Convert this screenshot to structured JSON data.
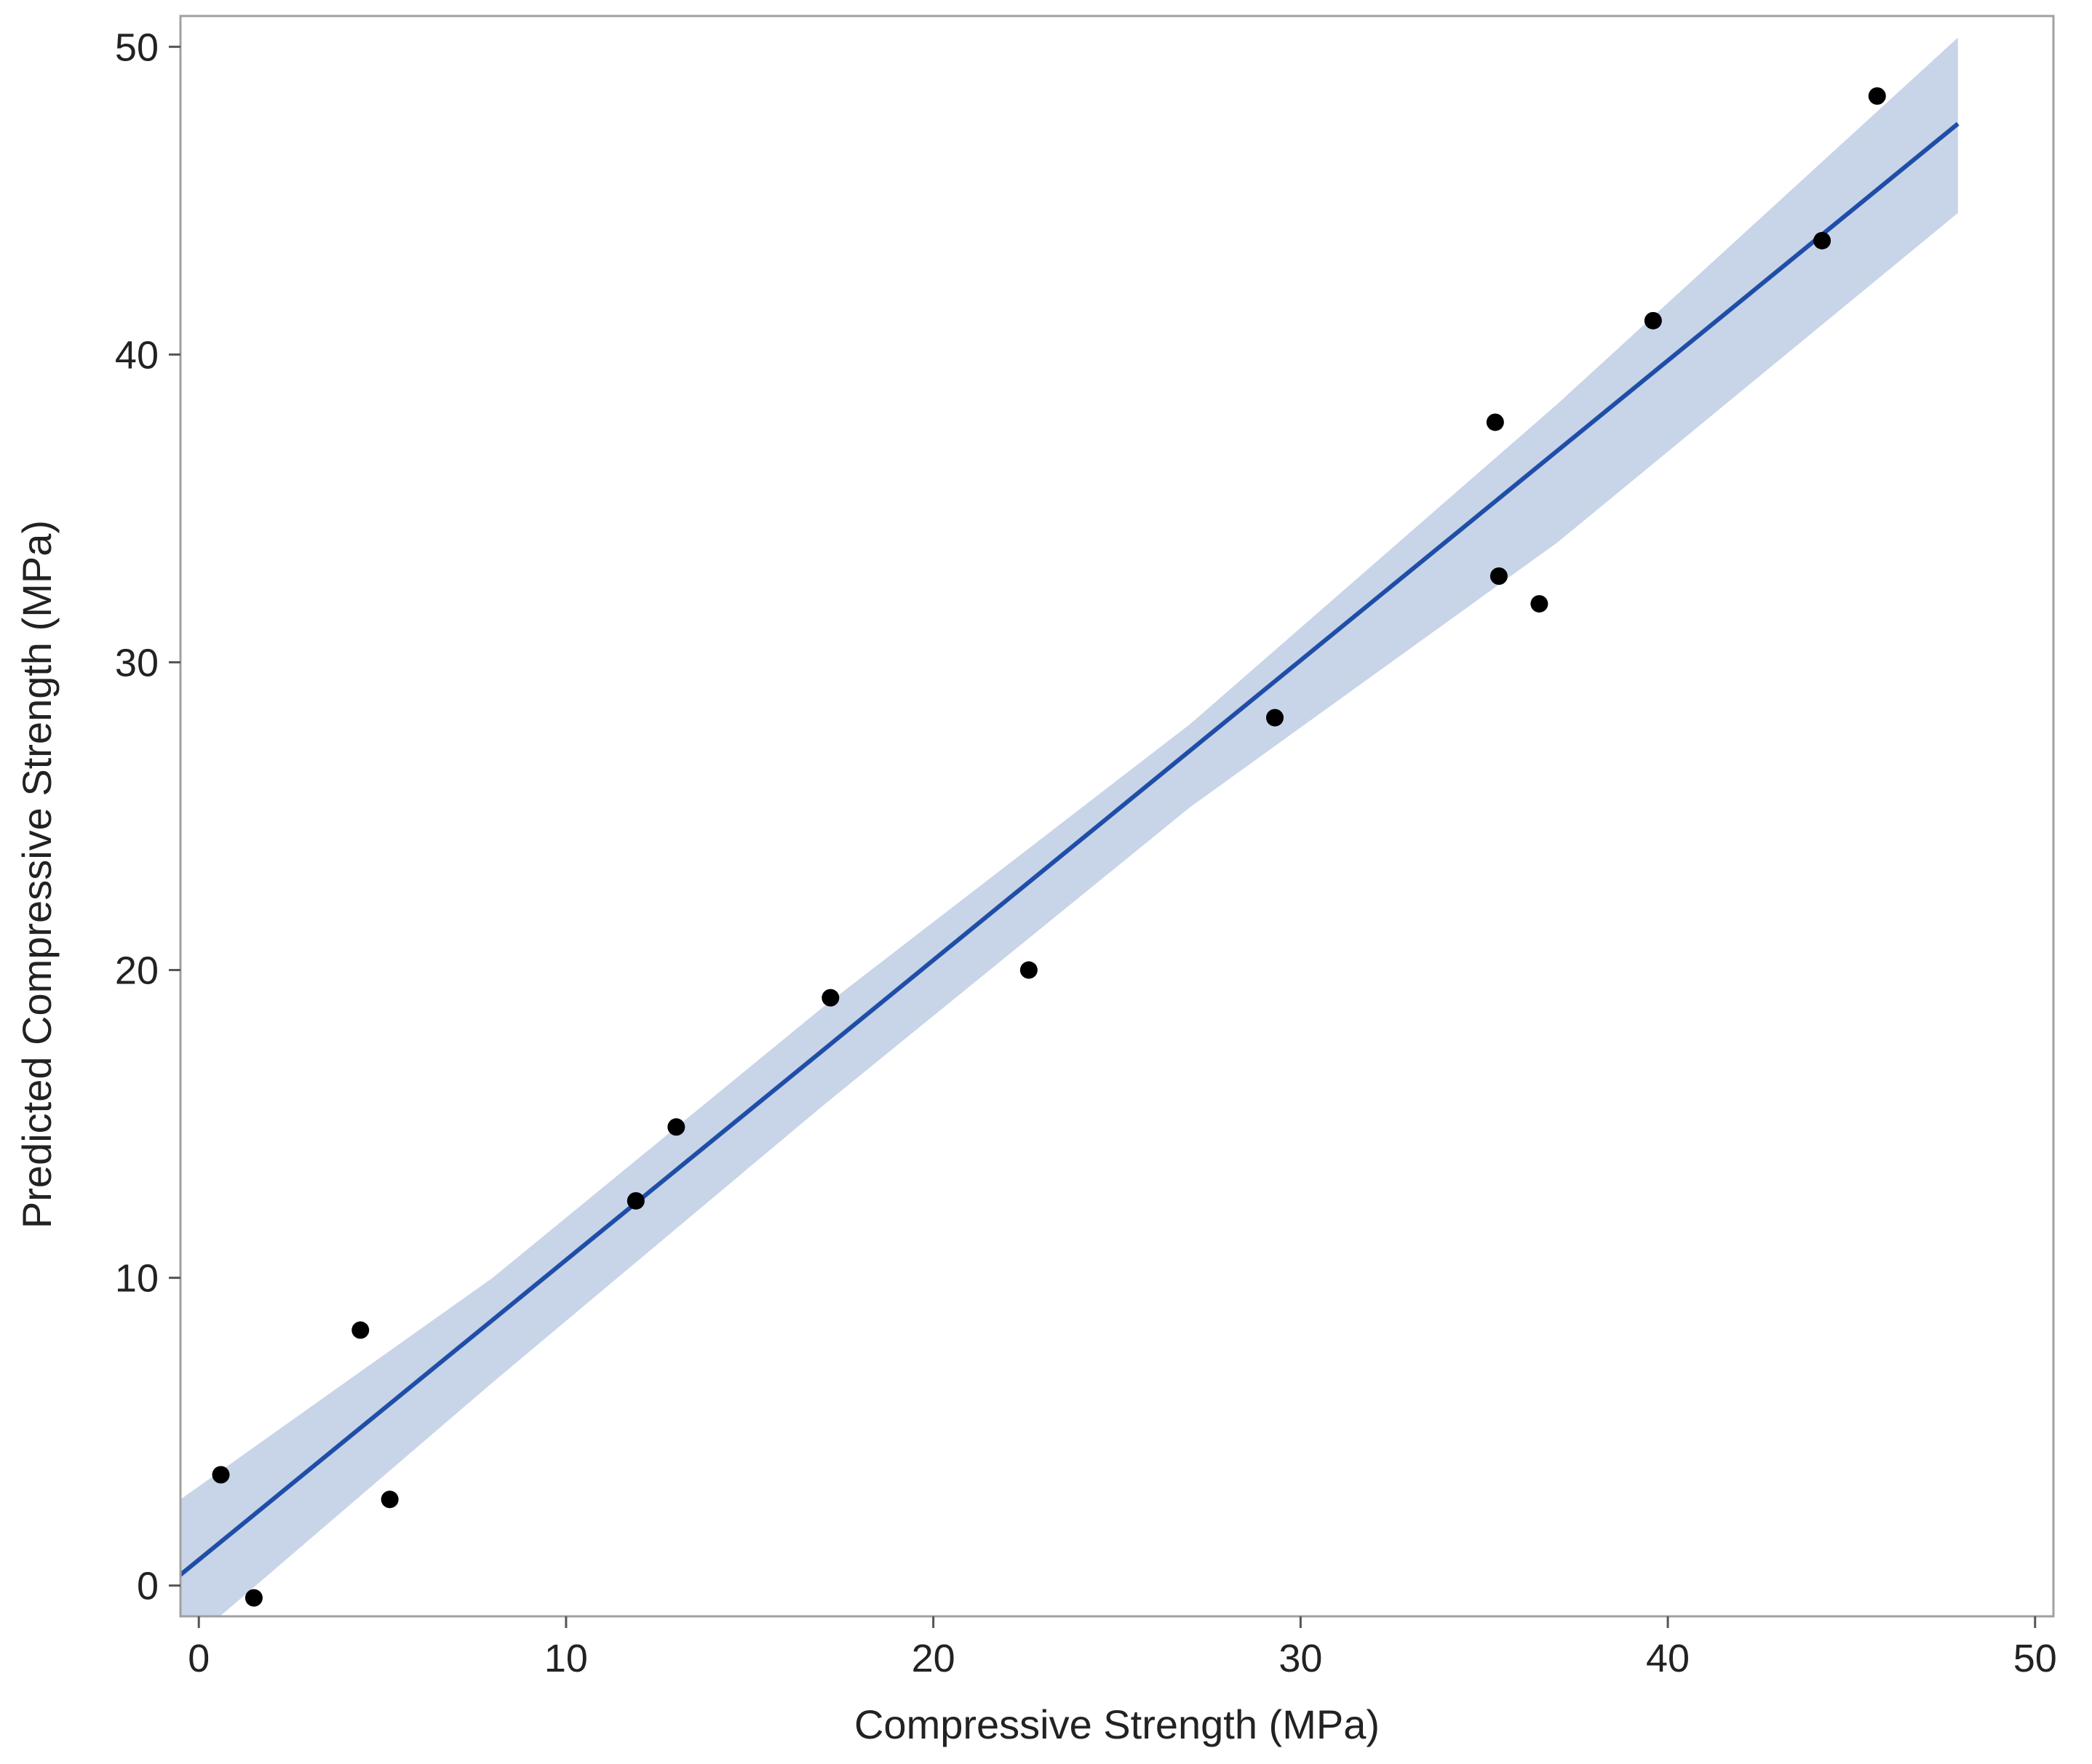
{
  "chart_data": {
    "type": "scatter",
    "title": "",
    "xlabel": "Compressive Strength (MPa)",
    "ylabel": "Predicted Compressive Strength (MPa)",
    "xlim": [
      -0.5,
      50.5
    ],
    "ylim": [
      -1,
      51
    ],
    "xticks": [
      0,
      10,
      20,
      30,
      40,
      50
    ],
    "yticks": [
      0,
      10,
      20,
      30,
      40,
      50
    ],
    "grid": false,
    "legend": "none",
    "points": [
      {
        "x": 0.6,
        "y": 3.6
      },
      {
        "x": 1.5,
        "y": -0.4
      },
      {
        "x": 4.4,
        "y": 8.3
      },
      {
        "x": 5.2,
        "y": 2.8
      },
      {
        "x": 11.9,
        "y": 12.5
      },
      {
        "x": 13.0,
        "y": 14.9
      },
      {
        "x": 17.2,
        "y": 19.1
      },
      {
        "x": 22.6,
        "y": 20.0
      },
      {
        "x": 29.3,
        "y": 28.2
      },
      {
        "x": 35.3,
        "y": 37.8
      },
      {
        "x": 35.4,
        "y": 32.8
      },
      {
        "x": 36.5,
        "y": 31.9
      },
      {
        "x": 39.6,
        "y": 41.1
      },
      {
        "x": 44.2,
        "y": 43.7
      },
      {
        "x": 45.7,
        "y": 48.4
      }
    ],
    "fit_line": {
      "x": [
        -0.5,
        47.9
      ],
      "y": [
        0.35,
        47.5
      ]
    },
    "confidence_band": {
      "x": [
        -0.5,
        8.0,
        17.0,
        27.0,
        37.0,
        47.9
      ],
      "lower": [
        -2.1,
        6.6,
        15.6,
        25.3,
        33.9,
        44.6
      ],
      "upper": [
        2.8,
        10.0,
        18.8,
        28.0,
        38.4,
        50.3
      ]
    },
    "colors": {
      "points": "#000000",
      "fit_line": "#1f4ea8",
      "band": "#c8d4e8",
      "frame": "#a0a0a0"
    }
  }
}
